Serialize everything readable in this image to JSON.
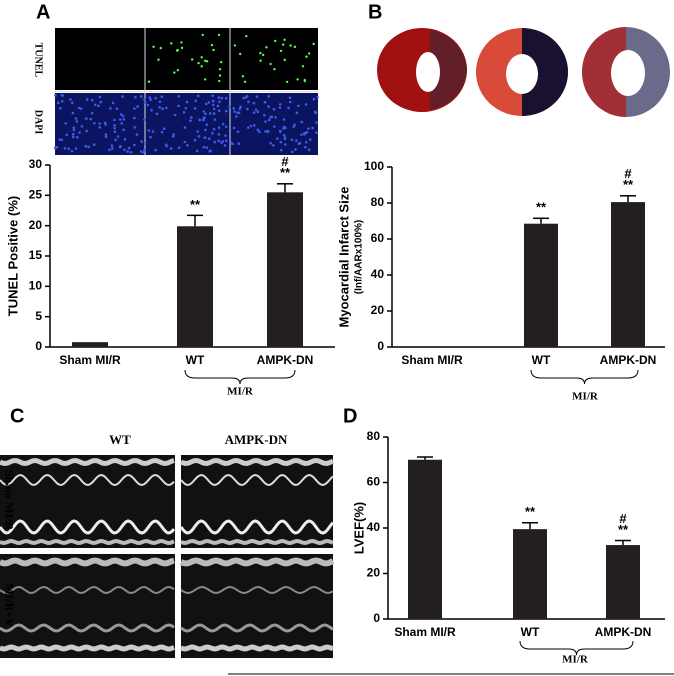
{
  "panels": {
    "labels": [
      "A",
      "B",
      "C",
      "D"
    ],
    "tunel_label": "TUNEL",
    "dapi_label": "DAPI",
    "echo_columns": [
      "WT",
      "AMPK-DN"
    ],
    "echo_rows": [
      "Sham MI/R",
      "MI/R+V"
    ]
  },
  "chart_data": [
    {
      "type": "bar",
      "ylabel": "TUNEL Positive (%)",
      "categories": [
        "Sham MI/R",
        "WT",
        "AMPK-DN"
      ],
      "values": [
        0.8,
        19.9,
        25.5
      ],
      "errors": [
        0,
        1.8,
        1.4
      ],
      "annotations": [
        [],
        [
          "**"
        ],
        [
          "#",
          "**"
        ]
      ],
      "group_label": "MI/R",
      "color": "#231f20",
      "ylim": [
        0,
        30
      ],
      "yticks": [
        0,
        5,
        10,
        15,
        20,
        25,
        30
      ]
    },
    {
      "type": "bar",
      "ylabel": "Myocardial Infarct Size",
      "ylabel_sub": "(Inf/AARx100%)",
      "categories": [
        "Sham MI/R",
        "WT",
        "AMPK-DN"
      ],
      "values": [
        0,
        68.5,
        80.5
      ],
      "errors": [
        0,
        3,
        3.5
      ],
      "annotations": [
        [],
        [
          "**"
        ],
        [
          "#",
          "**"
        ]
      ],
      "group_label": "MI/R",
      "color": "#231f20",
      "ylim": [
        0,
        100
      ],
      "yticks": [
        0,
        20,
        40,
        60,
        80,
        100
      ]
    },
    {
      "type": "bar",
      "ylabel": "LVEF(%)",
      "categories": [
        "Sham MI/R",
        "WT",
        "AMPK-DN"
      ],
      "values": [
        70,
        39.5,
        32.5
      ],
      "errors": [
        1.2,
        2.8,
        2
      ],
      "annotations": [
        [],
        [
          "**"
        ],
        [
          "#",
          "**"
        ]
      ],
      "group_label": "MI/R",
      "color": "#231f20",
      "ylim": [
        0,
        80
      ],
      "yticks": [
        0,
        20,
        40,
        60,
        80
      ]
    }
  ]
}
